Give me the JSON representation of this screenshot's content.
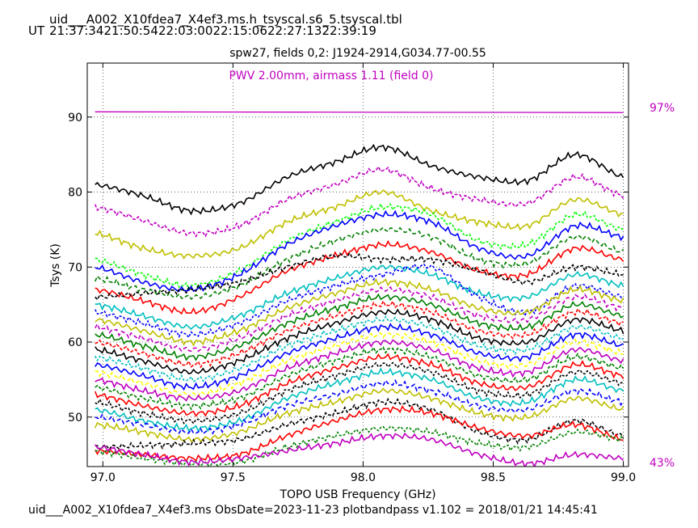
{
  "header": {
    "filename": "uid___A002_X10fdea7_X4ef3.ms.h_tsyscal.s6_5.tsyscal.tbl",
    "ut_label": "UT",
    "ut_times": [
      "21:37:34",
      "21:50:54",
      "22:03:00",
      "22:15:06",
      "22:27:13",
      "22:39:19"
    ]
  },
  "footer": {
    "text": "uid___A002_X10fdea7_X4ef3.ms  ObsDate=2023-11-23   plotbandpass v1.102 = 2018/01/21 14:45:41"
  },
  "chart_data": {
    "type": "line",
    "title": "spw27,  fields 0,2: J1924-2914,G034.77-00.55",
    "annotation": "PWV 2.00mm, airmass 1.11 (field 0)",
    "xlabel": "TOPO USB Frequency (GHz)",
    "ylabel": "Tsys (K)",
    "xlim": [
      96.94,
      99.02
    ],
    "ylim": [
      43.4,
      97.2
    ],
    "xticks": [
      "97.0",
      "97.5",
      "98.0",
      "98.5",
      "99.0"
    ],
    "yticks": [
      "50",
      "60",
      "70",
      "80",
      "90"
    ],
    "grid": true,
    "atm_transmission": {
      "color": "#c000c0",
      "label_top": "97%",
      "label_bottom": "43%",
      "x": [
        96.97,
        99.0
      ],
      "y": [
        90.7,
        90.6
      ]
    },
    "series": [
      {
        "color": "#000000",
        "values": [
          81,
          79.5,
          77.5,
          78.5,
          82,
          84,
          86,
          83.5,
          82,
          81.5,
          85,
          82
        ]
      },
      {
        "color": "#c000c0",
        "values": [
          78,
          76.2,
          74.5,
          75.5,
          79,
          81,
          83,
          80.5,
          79,
          78.5,
          82,
          79.5
        ]
      },
      {
        "color": "#bfbf00",
        "values": [
          74.5,
          72.5,
          71.5,
          72.5,
          76,
          78,
          80,
          77.5,
          76,
          75.5,
          79,
          77
        ]
      },
      {
        "color": "#00ff00",
        "values": [
          71,
          69,
          67.5,
          69.5,
          73.5,
          76,
          78,
          77,
          73.5,
          73,
          77,
          75
        ]
      },
      {
        "color": "#0000ff",
        "values": [
          70,
          68,
          67,
          69,
          73,
          75.5,
          77,
          76,
          72.5,
          71.5,
          75.5,
          74
        ]
      },
      {
        "color": "#008000",
        "values": [
          68.5,
          67,
          66,
          67.5,
          71,
          73.5,
          75,
          74,
          71,
          70.5,
          74,
          72
        ]
      },
      {
        "color": "#ff0000",
        "values": [
          67,
          65.5,
          64,
          66,
          69.5,
          71.5,
          73,
          72,
          69.5,
          69,
          72.5,
          71
        ]
      },
      {
        "color": "#000000",
        "values": [
          66,
          66.5,
          67,
          68,
          70,
          71.5,
          71,
          71,
          69.5,
          68,
          70,
          69
        ]
      },
      {
        "color": "#00bfbf",
        "values": [
          65,
          63.5,
          62,
          63.5,
          66.5,
          68.5,
          70,
          69,
          66.5,
          66,
          69,
          67.5
        ]
      },
      {
        "color": "#0000ff",
        "values": [
          64,
          62.5,
          61,
          62.5,
          65.5,
          67.5,
          69,
          70,
          66,
          64,
          67.5,
          66
        ]
      },
      {
        "color": "#bfbf00",
        "values": [
          63,
          61.5,
          60,
          61.5,
          64.5,
          66.5,
          68,
          67,
          64.5,
          64,
          67,
          65.5
        ]
      },
      {
        "color": "#c000c0",
        "values": [
          62,
          60.5,
          59,
          60.5,
          63.5,
          65.5,
          67,
          66,
          63.5,
          63,
          66,
          64.5
        ]
      },
      {
        "color": "#008000",
        "values": [
          61,
          59.5,
          58,
          59.5,
          62.5,
          64.5,
          66,
          65,
          62.5,
          62,
          65,
          63.5
        ]
      },
      {
        "color": "#ff0000",
        "values": [
          60,
          58.5,
          57,
          58.5,
          61.5,
          63.5,
          65,
          64,
          61.5,
          61,
          64,
          62.5
        ]
      },
      {
        "color": "#000000",
        "values": [
          59,
          57.5,
          56,
          57.5,
          60.5,
          62.5,
          64,
          63,
          60.5,
          60,
          63,
          61.5
        ]
      },
      {
        "color": "#00bfbf",
        "values": [
          58,
          56.5,
          55,
          56.5,
          59.5,
          61.5,
          63,
          62,
          59.5,
          59,
          62,
          60.5
        ]
      },
      {
        "color": "#0000ff",
        "values": [
          57,
          55.5,
          54,
          55.5,
          58.5,
          60.5,
          62,
          61,
          58.5,
          58,
          61,
          59.5
        ]
      },
      {
        "color": "#ffff00",
        "values": [
          56,
          54.5,
          53,
          54.5,
          57.5,
          59.5,
          61,
          60,
          57.5,
          57,
          60,
          58.5
        ]
      },
      {
        "color": "#c000c0",
        "values": [
          55,
          53.5,
          52.5,
          53.5,
          56.5,
          58.5,
          60,
          59,
          56.5,
          56,
          59,
          57.5
        ]
      },
      {
        "color": "#008000",
        "values": [
          54,
          52.5,
          51.5,
          52.5,
          55.5,
          57.5,
          59,
          58,
          55.5,
          55,
          58,
          56.5
        ]
      },
      {
        "color": "#ff0000",
        "values": [
          53,
          51.5,
          50.5,
          51.5,
          54.5,
          56.5,
          58,
          57,
          54.5,
          54,
          57,
          55.5
        ]
      },
      {
        "color": "#000000",
        "values": [
          52,
          50.5,
          49.5,
          50.5,
          53.5,
          55.5,
          57,
          56,
          53.5,
          53,
          56,
          54.5
        ]
      },
      {
        "color": "#00bfbf",
        "values": [
          51,
          49.5,
          48.5,
          49.5,
          52.5,
          54.5,
          56,
          55,
          52.5,
          52,
          55,
          53.5
        ]
      },
      {
        "color": "#0000ff",
        "values": [
          50,
          49,
          48,
          49,
          51.5,
          53,
          54.5,
          53.5,
          51.5,
          51,
          53.5,
          52
        ]
      },
      {
        "color": "#bfbf00",
        "values": [
          49,
          48,
          47,
          48,
          50.5,
          52,
          53.5,
          52.5,
          50.5,
          50,
          52.5,
          51
        ]
      },
      {
        "color": "#000000",
        "values": [
          46,
          46.2,
          46.5,
          47,
          49,
          50.5,
          52,
          51,
          48,
          47,
          49.5,
          47.5
        ]
      },
      {
        "color": "#ff0000",
        "values": [
          45.5,
          45,
          44.5,
          45,
          47.5,
          49.5,
          51,
          50.5,
          48.5,
          47.5,
          49,
          47
        ]
      },
      {
        "color": "#008000",
        "values": [
          45.5,
          44.5,
          43.8,
          44,
          46,
          47.5,
          48.5,
          48,
          46.5,
          46,
          48,
          47
        ]
      },
      {
        "color": "#c000c0",
        "values": [
          46,
          45,
          44,
          44.5,
          45.5,
          46.5,
          47.5,
          47,
          45,
          43.8,
          45,
          44.5
        ]
      }
    ]
  }
}
